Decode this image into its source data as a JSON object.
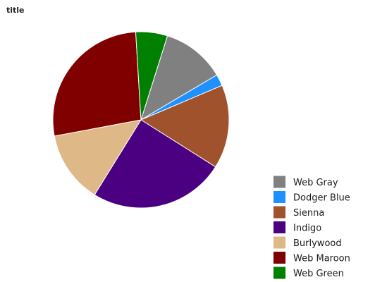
{
  "chart_data": {
    "type": "pie",
    "title": "title",
    "start_angle_deg": 17.5,
    "direction": "clockwise",
    "legend_position": "right",
    "slices": [
      {
        "label": "Web Gray",
        "value": 11.0,
        "color": "#808080"
      },
      {
        "label": "Dodger Blue",
        "value": 2.0,
        "color": "#1e90ff"
      },
      {
        "label": "Sienna",
        "value": 14.5,
        "color": "#a0522d"
      },
      {
        "label": "Indigo",
        "value": 23.5,
        "color": "#4b0082"
      },
      {
        "label": "Burlywood",
        "value": 12.5,
        "color": "#deb887"
      },
      {
        "label": "Web Maroon",
        "value": 25.5,
        "color": "#800000"
      },
      {
        "label": "Web Green",
        "value": 5.5,
        "color": "#008000"
      }
    ]
  }
}
